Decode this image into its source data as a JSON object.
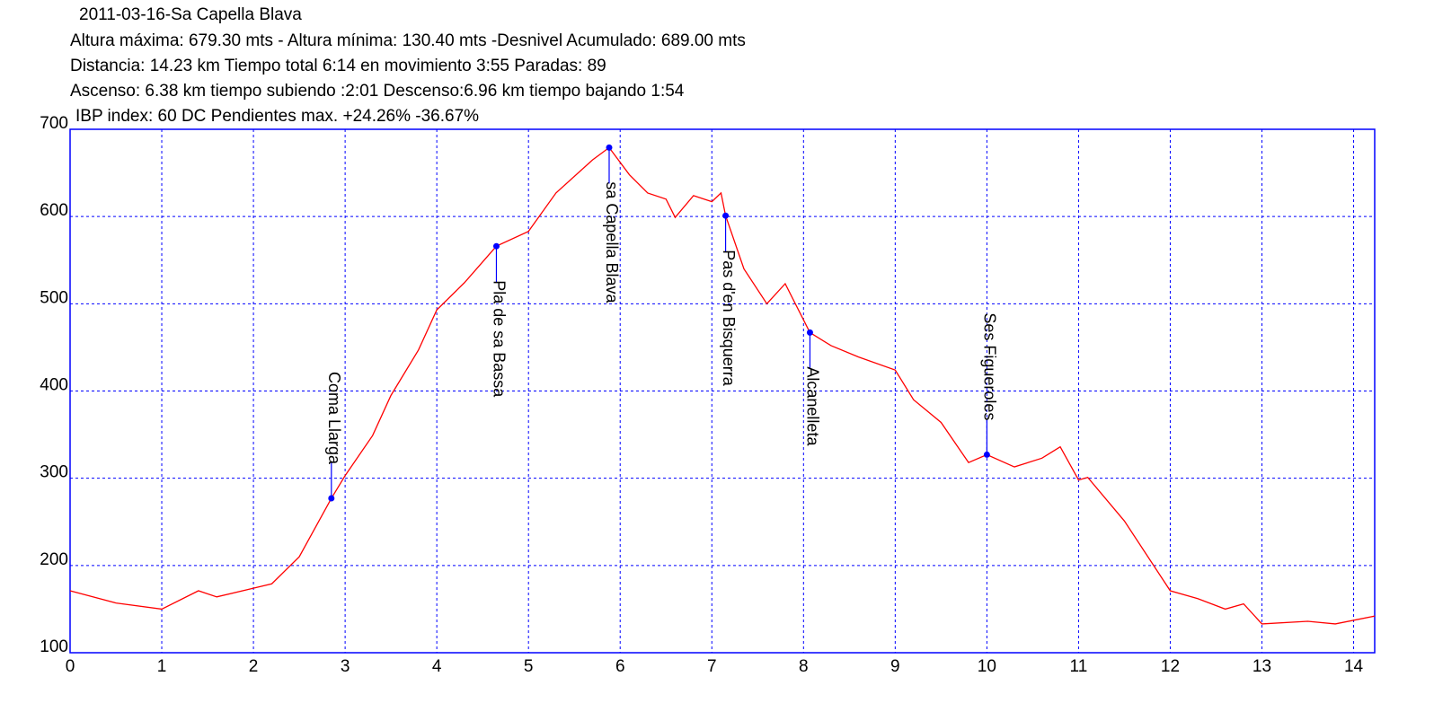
{
  "chart_data": {
    "type": "line",
    "title": "2011-03-16-Sa Capella Blava",
    "info": [
      "Altura máxima: 679.30 mts - Altura mínima: 130.40 mts -Desnivel Acumulado: 689.00 mts",
      "Distancia: 14.23 km  Tiempo total 6:14  en movimiento 3:55 Paradas: 89",
      "Ascenso: 6.38 km  tiempo subiendo :2:01  Descenso:6.96 km tiempo bajando 1:54",
      "IBP index: 60 DC Pendientes max. +24.26%  -36.67%"
    ],
    "x": [
      0,
      0.5,
      1.0,
      1.4,
      1.6,
      2.0,
      2.2,
      2.5,
      2.85,
      3.0,
      3.3,
      3.5,
      3.8,
      4.0,
      4.3,
      4.65,
      5.0,
      5.3,
      5.7,
      5.88,
      6.1,
      6.3,
      6.5,
      6.6,
      6.8,
      7.0,
      7.1,
      7.15,
      7.35,
      7.6,
      7.8,
      8.07,
      8.3,
      8.6,
      9.0,
      9.2,
      9.5,
      9.8,
      10.0,
      10.3,
      10.6,
      10.8,
      11.0,
      11.1,
      11.5,
      12.0,
      12.3,
      12.6,
      12.8,
      13.0,
      13.5,
      13.8,
      14.23
    ],
    "series": [
      {
        "name": "Altura",
        "color": "#ff0000",
        "values": [
          171,
          157,
          150,
          171,
          164,
          174,
          179,
          210,
          277,
          303,
          349,
          395,
          447,
          493,
          524,
          566,
          583,
          627,
          665,
          679,
          648,
          627,
          620,
          599,
          624,
          617,
          627,
          601,
          540,
          500,
          523,
          467,
          452,
          439,
          424,
          390,
          364,
          318,
          327,
          313,
          323,
          336,
          298,
          301,
          251,
          171,
          162,
          150,
          156,
          133,
          136,
          133,
          142
        ]
      }
    ],
    "waypoints": [
      {
        "name": "Coma Llarga",
        "x": 2.85,
        "y": 277
      },
      {
        "name": "Pla de sa Bassa",
        "x": 4.65,
        "y": 566
      },
      {
        "name": "sa Capella Blava",
        "x": 5.88,
        "y": 679
      },
      {
        "name": "Pas d'en Bisquerra",
        "x": 7.15,
        "y": 601
      },
      {
        "name": "Alcanelleta",
        "x": 8.07,
        "y": 467
      },
      {
        "name": "Ses Figueroles",
        "x": 10.0,
        "y": 327
      }
    ],
    "waypoint_color": "#0000ff",
    "xlim": [
      0,
      14.23
    ],
    "xticks": [
      0,
      1,
      2,
      3,
      4,
      5,
      6,
      7,
      8,
      9,
      10,
      11,
      12,
      13,
      14
    ],
    "ylim": [
      100,
      700
    ],
    "yticks": [
      100,
      200,
      300,
      400,
      500,
      600,
      700
    ],
    "grid": true
  }
}
